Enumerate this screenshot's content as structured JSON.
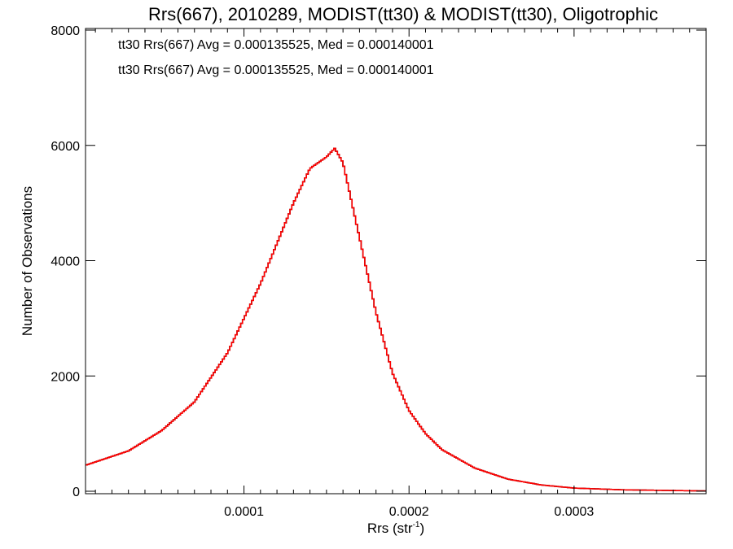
{
  "chart_data": {
    "type": "histogram",
    "title": "Rrs(667), 2010289, MODIST(tt30) & MODIST(tt30), Oligotrophic",
    "xlabel": "Rrs (str",
    "xlabel_sup": "-1",
    "xlabel_close": ")",
    "ylabel": "Number of Observations",
    "xlim": [
      4e-06,
      0.00038
    ],
    "ylim": [
      0,
      8000
    ],
    "x_ticks": [
      {
        "value": 0.0001,
        "label": "0.0001"
      },
      {
        "value": 0.0002,
        "label": "0.0002"
      },
      {
        "value": 0.0003,
        "label": "0.0003"
      }
    ],
    "y_ticks": [
      {
        "value": 0,
        "label": "0"
      },
      {
        "value": 2000,
        "label": "2000"
      },
      {
        "value": 4000,
        "label": "4000"
      },
      {
        "value": 6000,
        "label": "6000"
      },
      {
        "value": 8000,
        "label": "8000"
      }
    ],
    "legend": [
      {
        "text": "tt30 Rrs(667) Avg = 0.000135525, Med = 0.000140001",
        "color": "#000000"
      },
      {
        "text": "tt30 Rrs(667) Avg = 0.000135525, Med = 0.000140001",
        "color": "#ff0000"
      }
    ],
    "series": [
      {
        "color": "#000000",
        "x": [
          4e-06,
          3e-05,
          5e-05,
          7e-05,
          9e-05,
          0.00011,
          0.00013,
          0.00014,
          0.00015,
          0.000155,
          0.00016,
          0.00017,
          0.00018,
          0.00019,
          0.0002,
          0.00021,
          0.00022,
          0.00024,
          0.00026,
          0.00028,
          0.0003,
          0.00033,
          0.00038
        ],
        "y": [
          450,
          700,
          1050,
          1550,
          2400,
          3600,
          5000,
          5600,
          5800,
          5950,
          5700,
          4400,
          3100,
          2050,
          1400,
          1000,
          720,
          400,
          210,
          110,
          55,
          25,
          5
        ]
      },
      {
        "color": "#ff0000",
        "x": [
          4e-06,
          3e-05,
          5e-05,
          7e-05,
          9e-05,
          0.00011,
          0.00013,
          0.00014,
          0.00015,
          0.000155,
          0.00016,
          0.00017,
          0.00018,
          0.00019,
          0.0002,
          0.00021,
          0.00022,
          0.00024,
          0.00026,
          0.00028,
          0.0003,
          0.00033,
          0.00038
        ],
        "y": [
          450,
          700,
          1050,
          1550,
          2400,
          3600,
          5000,
          5600,
          5800,
          5950,
          5700,
          4400,
          3100,
          2050,
          1400,
          1000,
          720,
          400,
          210,
          110,
          55,
          25,
          5
        ]
      }
    ]
  }
}
